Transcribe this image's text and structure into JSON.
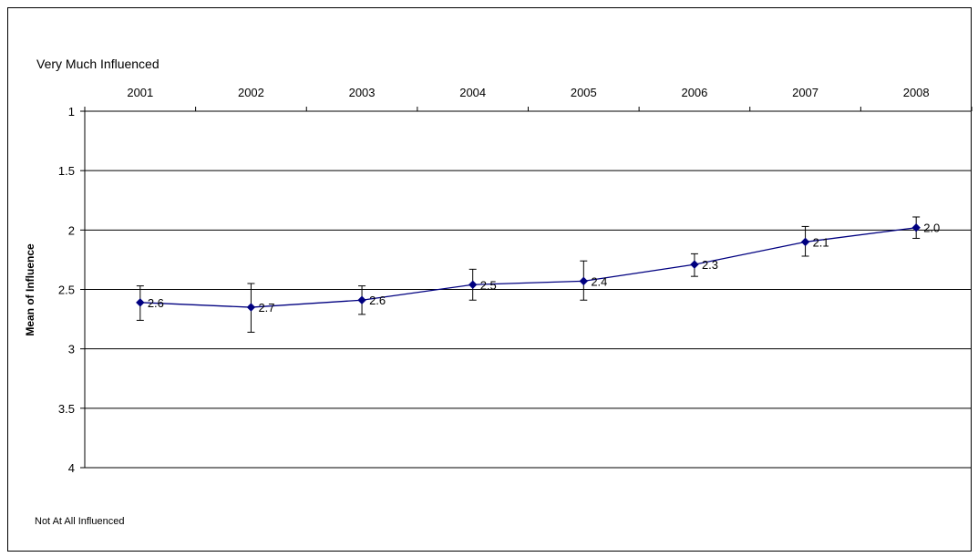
{
  "chart_data": {
    "type": "line",
    "top_label": "Very Much Influenced",
    "bottom_label": "Not At All Influenced",
    "ylabel": "Mean of Influence",
    "categories": [
      "2001",
      "2002",
      "2003",
      "2004",
      "2005",
      "2006",
      "2007",
      "2008"
    ],
    "yticks": [
      "1",
      "1.5",
      "2",
      "2.5",
      "3",
      "3.5",
      "4"
    ],
    "ylim": [
      1,
      4
    ],
    "y_inverted": true,
    "x_axis_position": "top",
    "grid": true,
    "series": [
      {
        "values": [
          2.61,
          2.65,
          2.59,
          2.46,
          2.43,
          2.29,
          2.1,
          1.98
        ],
        "data_labels": [
          "2.6",
          "2.7",
          "2.6",
          "2.5",
          "2.4",
          "2.3",
          "2.1",
          "2.0"
        ],
        "error_low": [
          2.47,
          2.45,
          2.47,
          2.33,
          2.26,
          2.2,
          1.97,
          1.89
        ],
        "error_high": [
          2.76,
          2.86,
          2.71,
          2.59,
          2.59,
          2.39,
          2.22,
          2.07
        ],
        "color": "#000080"
      }
    ]
  }
}
